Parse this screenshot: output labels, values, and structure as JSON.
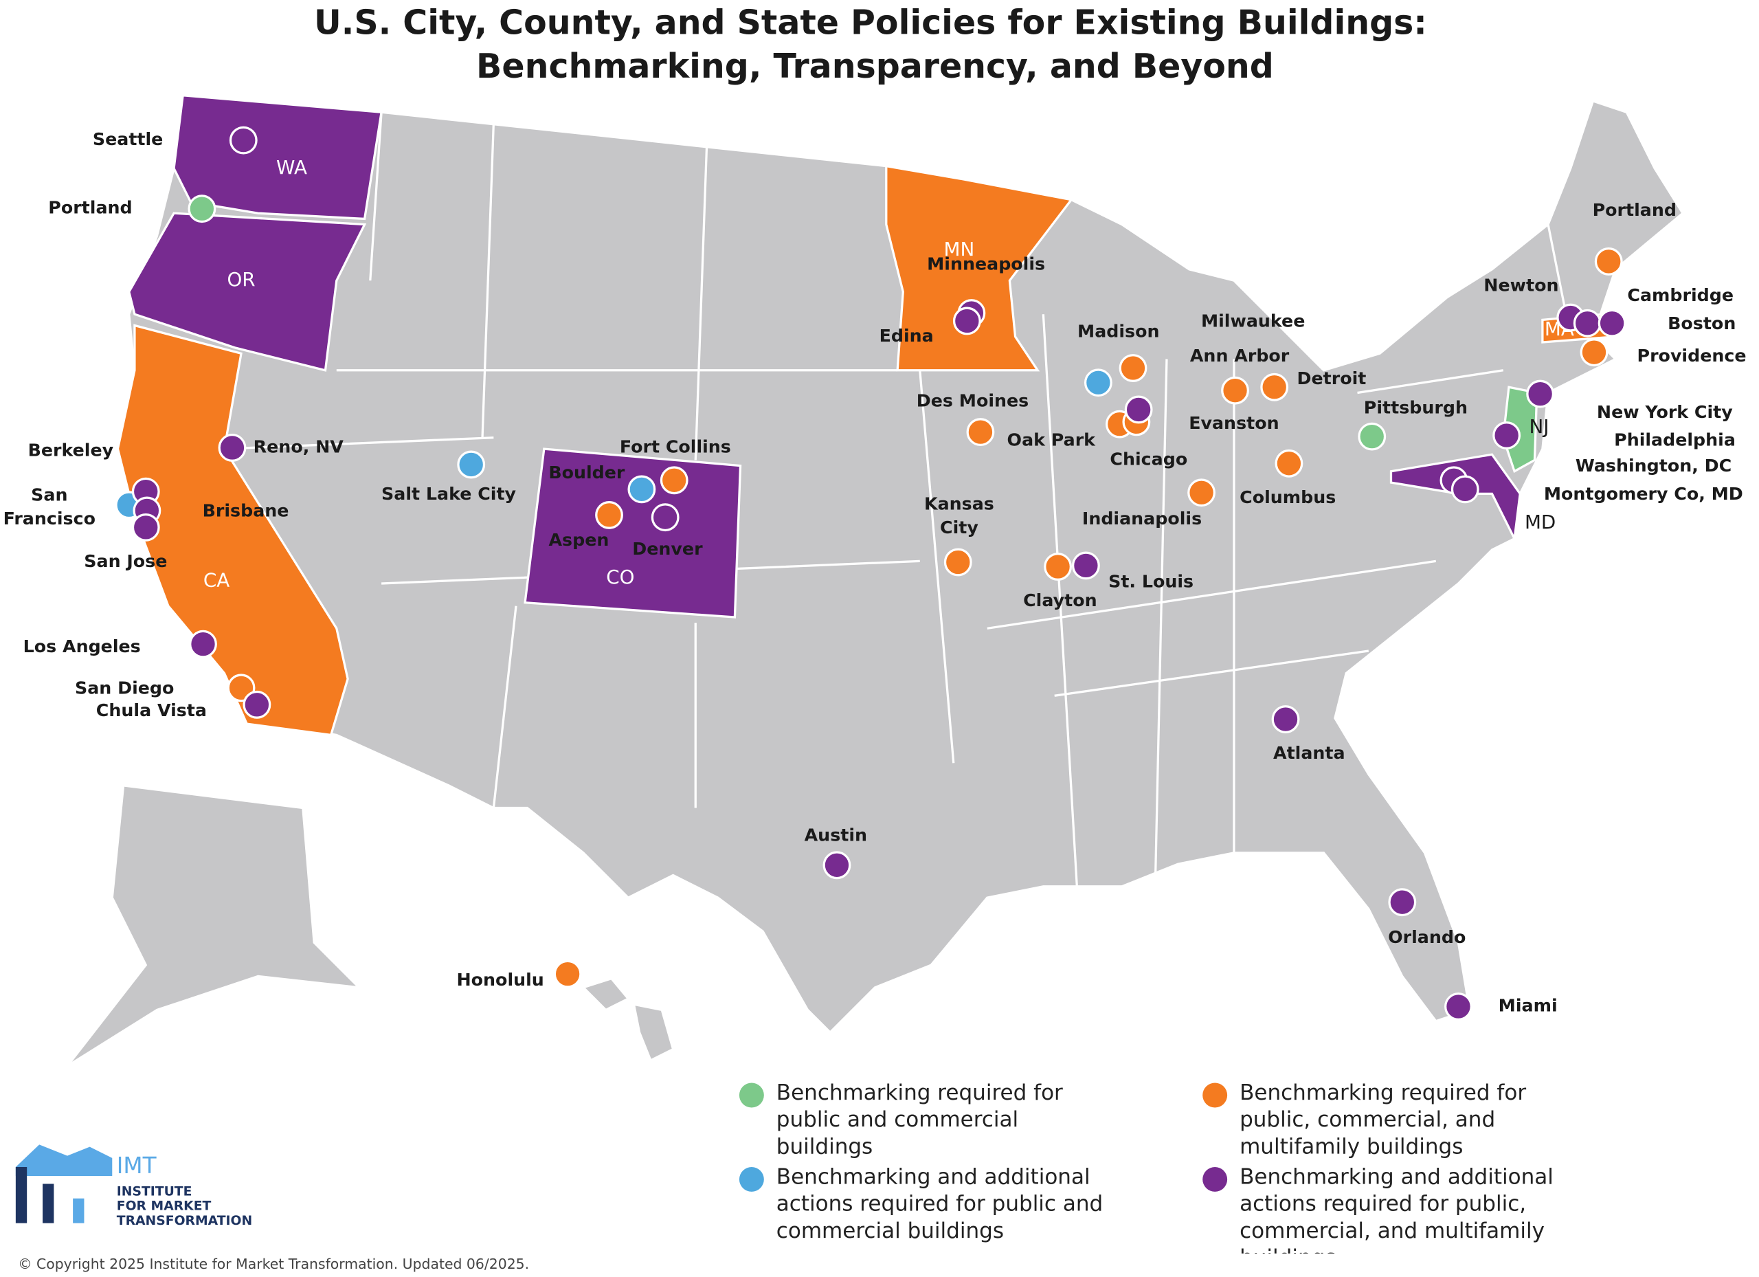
{
  "title": [
    "U.S. City, County, and State Policies for Existing Buildings:",
    "Benchmarking, Transparency, and Beyond"
  ],
  "legend": [
    {
      "color": "#7dc98a",
      "label": "Benchmarking required for public and commercial buildings",
      "states": [
        "NJ"
      ],
      "cities": [
        "Portland",
        "Pittsburgh"
      ]
    },
    {
      "color": "#4ea8de",
      "label": "Benchmarking and additional actions required for public and commercial buildings",
      "states": [],
      "cities": [
        "San Francisco",
        "Salt Lake City",
        "Madison",
        "Boulder"
      ]
    },
    {
      "color": "#f47b20",
      "label": "Benchmarking required for public, commercial, and multifamily buildings",
      "states": [
        "MN",
        "CA",
        "MA"
      ],
      "cities": [
        "Portland",
        "Providence",
        "Milwaukee",
        "Ann Arbor",
        "Detroit",
        "Des Moines",
        "Oak Park",
        "Chicago",
        "Columbus",
        "Indianapolis",
        "Kansas City",
        "Clayton",
        "Fort Collins",
        "Aspen",
        "San Diego",
        "Honolulu"
      ]
    },
    {
      "color": "#772b90",
      "label": "Benchmarking and additional actions required for public, commercial, and multifamily buildings",
      "states": [
        "WA",
        "OR",
        "CO",
        "MD"
      ],
      "cities": [
        "Seattle",
        "Reno, NV",
        "Berkeley",
        "Brisbane",
        "San Jose",
        "Los Angeles",
        "Chula Vista",
        "Denver",
        "Minneapolis",
        "Edina",
        "Evanston",
        "St. Louis",
        "Atlanta",
        "Austin",
        "Orlando",
        "Miami",
        "Newton",
        "Cambridge",
        "Boston",
        "New York City",
        "Philadelphia",
        "Washington, DC",
        "Montgomery Co, MD"
      ]
    }
  ],
  "logo": {
    "name": "IMT",
    "lines": [
      "INSTITUTE",
      "FOR MARKET",
      "TRANSFORMATION"
    ]
  },
  "copyright": "© Copyright 2025 Institute for Market Transformation. Updated 06/2025."
}
